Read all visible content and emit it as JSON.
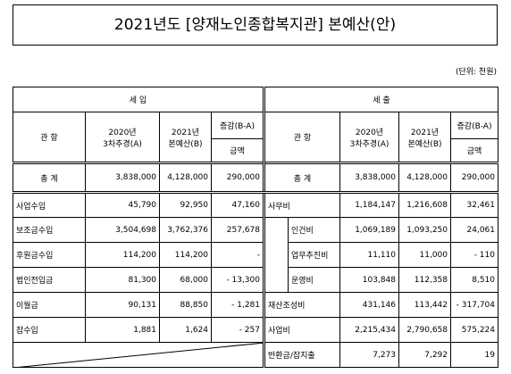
{
  "title": "2021년도 [양재노인종합복지관] 본예산(안)",
  "unit": "(단위: 천원)",
  "income": {
    "title": "세 입",
    "columns": [
      "관 항",
      "2020년\n3차추경(A)",
      "2021년\n본예산(B)",
      "증감(B-A)",
      "금액"
    ],
    "total": [
      "총 계",
      "3,838,000",
      "4,128,000",
      "290,000"
    ],
    "rows": [
      [
        "사업수입",
        "45,790",
        "92,950",
        "47,160"
      ],
      [
        "보조금수입",
        "3,504,698",
        "3,762,376",
        "257,678"
      ],
      [
        "후원금수입",
        "114,200",
        "114,200",
        "-"
      ],
      [
        "법인전입금",
        "81,300",
        "68,000",
        "- 13,300"
      ],
      [
        "이월금",
        "90,131",
        "88,850",
        "- 1,281"
      ],
      [
        "잡수입",
        "1,881",
        "1,624",
        "- 257"
      ]
    ]
  },
  "expense": {
    "title": "세 출",
    "columns": [
      "관 항",
      "2020년\n3차추경(A)",
      "2021년\n본예산(B)",
      "증감(B-A)",
      "금액"
    ],
    "total": [
      "총 계",
      "3,838,000",
      "4,128,000",
      "290,000"
    ],
    "rows": [
      [
        "사무비",
        "1,184,147",
        "1,216,608",
        "32,461"
      ],
      [
        "인건비",
        "1,069,189",
        "1,093,250",
        "24,061"
      ],
      [
        "업무추진비",
        "11,110",
        "11,000",
        "- 110"
      ],
      [
        "운영비",
        "103,848",
        "112,358",
        "8,510"
      ],
      [
        "재산조성비",
        "431,146",
        "113,442",
        "- 317,704"
      ],
      [
        "사업비",
        "2,215,434",
        "2,790,658",
        "575,224"
      ],
      [
        "반환금/잡지출",
        "7,273",
        "7,292",
        "19"
      ]
    ]
  }
}
